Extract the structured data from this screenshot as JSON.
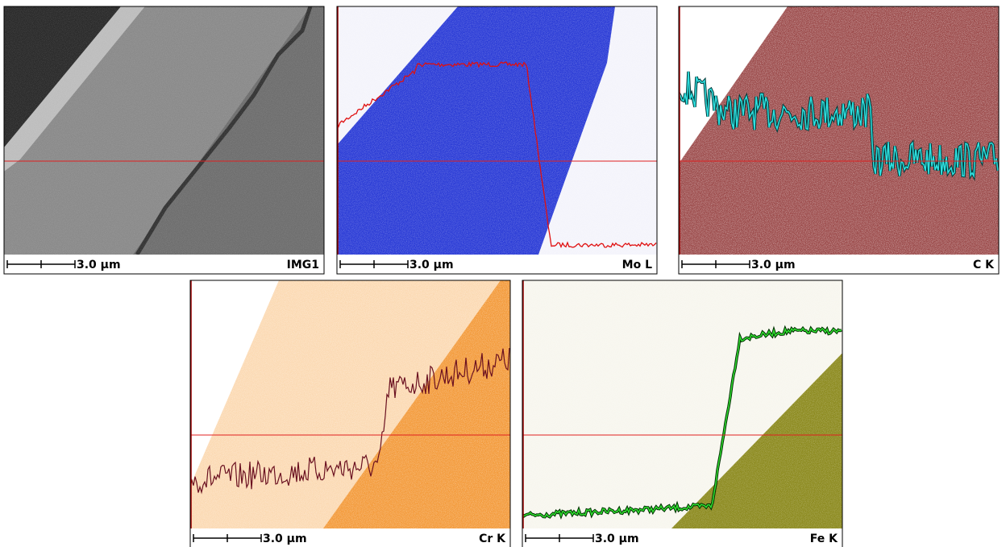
{
  "panels": [
    {
      "scale": "3.0 µm",
      "label": "IMG1"
    },
    {
      "scale": "3.0 µm",
      "label": "Mo L"
    },
    {
      "scale": "3.0 µm",
      "label": "C K"
    },
    {
      "scale": "3.0 µm",
      "label": "Cr K"
    },
    {
      "scale": "3.0 µm",
      "label": "Fe K"
    }
  ]
}
